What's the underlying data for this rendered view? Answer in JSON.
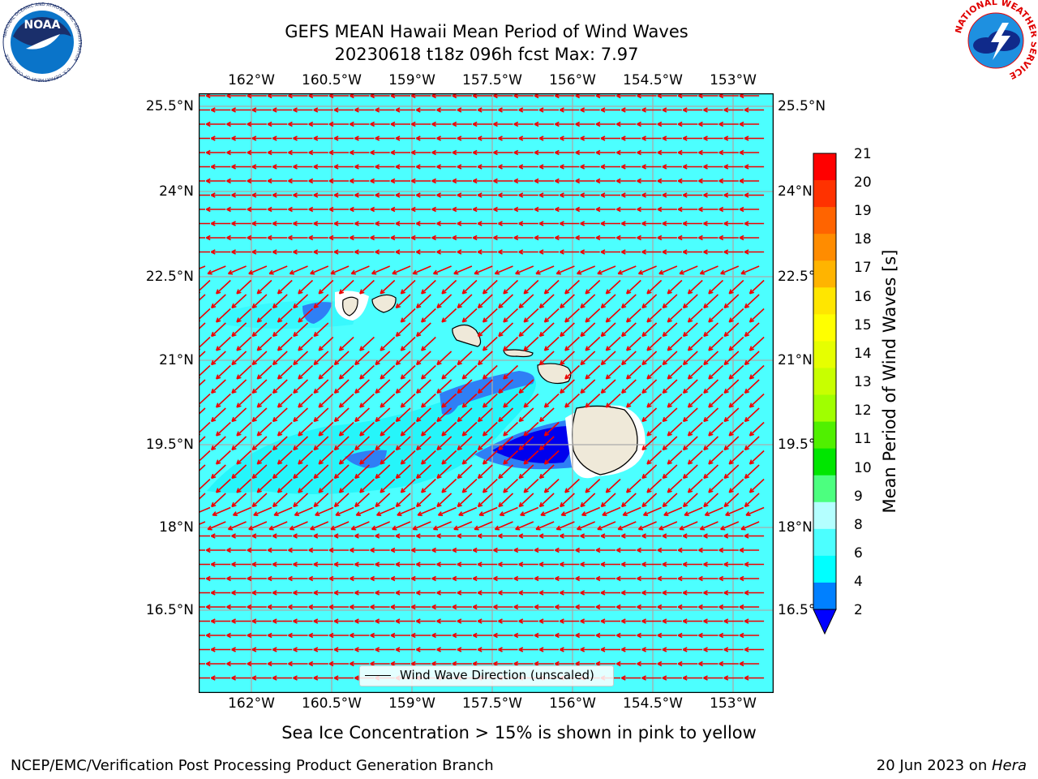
{
  "title": {
    "line1": "GEFS MEAN Hawaii Mean Period of Wind Waves",
    "line2": "20230618 t18z 096h fcst   Max: 7.97"
  },
  "map": {
    "lon_labels": [
      "162°W",
      "160.5°W",
      "159°W",
      "157.5°W",
      "156°W",
      "154.5°W",
      "153°W"
    ],
    "lat_labels": [
      "25.5°N",
      "24°N",
      "22.5°N",
      "21°N",
      "19.5°N",
      "18°N",
      "16.5°N"
    ],
    "ocean_color": "#4cffff",
    "grid_color": "#aaaaaa",
    "arrow_color": "#ee0000",
    "legend_label": "Wind Wave Direction (unscaled)"
  },
  "colorbar": {
    "label": "Mean Period of Wind Waves [s]",
    "ticks": [
      "21",
      "20",
      "19",
      "18",
      "17",
      "16",
      "15",
      "14",
      "13",
      "12",
      "11",
      "10",
      "9",
      "8",
      "6",
      "4",
      "2"
    ],
    "colors": [
      "#ff0000",
      "#ff3200",
      "#ff6400",
      "#ff8c00",
      "#ffb400",
      "#ffe600",
      "#ffff00",
      "#e6ff00",
      "#c8ff00",
      "#a0ff00",
      "#50f000",
      "#00e600",
      "#4cff7f",
      "#b4ffff",
      "#4cffff",
      "#00ffff",
      "#0080ff"
    ],
    "extend_color": "#0000ff"
  },
  "footer": {
    "note": "Sea Ice Concentration > 15% is shown in pink to yellow",
    "left": "NCEP/EMC/Verification Post Processing Product Generation Branch",
    "date": "20 Jun 2023 on ",
    "machine": "Hera"
  },
  "logos": {
    "noaa_text": "NOAA",
    "noaa_ring_text": "NATIONAL OCEANIC AND ATMOSPHERIC ADMINISTRATION",
    "noaa_ring_text2": "U.S. DEPARTMENT OF COMMERCE",
    "nws_ring_text": "NATIONAL WEATHER SERVICE"
  }
}
